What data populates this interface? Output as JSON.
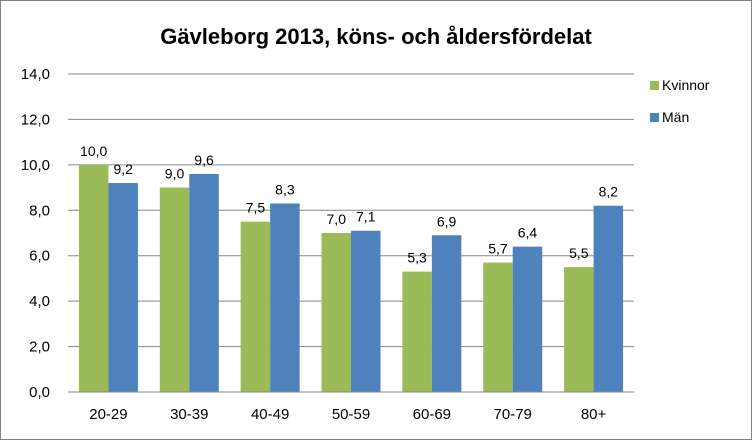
{
  "chart_data": {
    "type": "bar",
    "title": "Gävleborg 2013, köns- och åldersfördelat",
    "xlabel": "",
    "ylabel": "",
    "categories": [
      "20-29",
      "30-39",
      "40-49",
      "50-59",
      "60-69",
      "70-79",
      "80+"
    ],
    "series": [
      {
        "name": "Kvinnor",
        "color": "#9BBB59",
        "values": [
          10.0,
          9.0,
          7.5,
          7.0,
          5.3,
          5.7,
          5.5
        ],
        "labels": [
          "10,0",
          "9,0",
          "7,5",
          "7,0",
          "5,3",
          "5,7",
          "5,5"
        ]
      },
      {
        "name": "Män",
        "color": "#4F81BD",
        "values": [
          9.2,
          9.6,
          8.3,
          7.1,
          6.9,
          6.4,
          8.2
        ],
        "labels": [
          "9,2",
          "9,6",
          "8,3",
          "7,1",
          "6,9",
          "6,4",
          "8,2"
        ]
      }
    ],
    "ylim": [
      0,
      14
    ],
    "yticks": [
      0,
      2,
      4,
      6,
      8,
      10,
      12,
      14
    ],
    "ytick_labels": [
      "0,0",
      "2,0",
      "4,0",
      "6,0",
      "8,0",
      "10,0",
      "12,0",
      "14,0"
    ],
    "grid": true,
    "legend_position": "right"
  }
}
